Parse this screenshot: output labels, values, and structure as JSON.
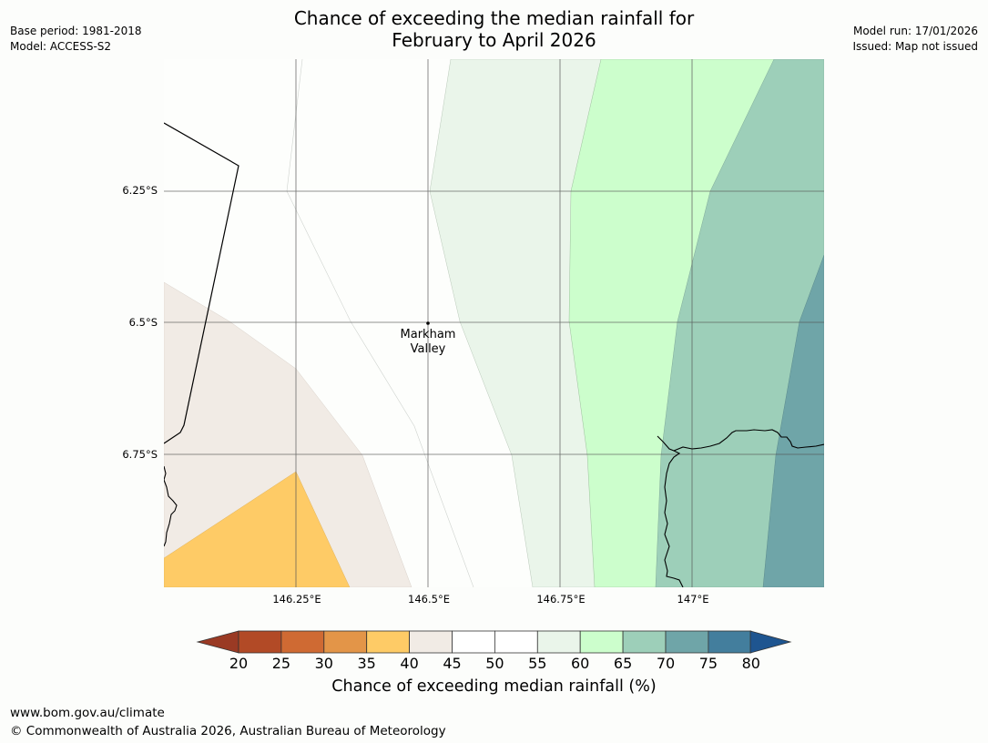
{
  "title": {
    "line1": "Chance of exceeding the median rainfall for",
    "line2": "February to April 2026"
  },
  "meta": {
    "base_period": "Base period: 1981-2018",
    "model": "Model: ACCESS-S2",
    "model_run": "Model run: 17/01/2026",
    "issued": "Issued: Map not issued"
  },
  "map": {
    "lat_labels": [
      "6.25°S",
      "6.5°S",
      "6.75°S"
    ],
    "lon_labels": [
      "146.25°E",
      "146.5°E",
      "146.75°E",
      "147°E"
    ],
    "location": {
      "name_line1": "Markham",
      "name_line2": "Valley"
    }
  },
  "colorbar": {
    "ticks": [
      "20",
      "25",
      "30",
      "35",
      "40",
      "45",
      "50",
      "55",
      "60",
      "65",
      "70",
      "75",
      "80"
    ],
    "colors": [
      "#b24a26",
      "#cf6a33",
      "#e39548",
      "#fecb66",
      "#f1ebe5",
      "#ffffff",
      "#ffffff",
      "#eaf5ea",
      "#ccfecc",
      "#9dcfb9",
      "#6fa5a8",
      "#437e9d"
    ],
    "under_color": "#9a3a24",
    "over_color": "#1e5590",
    "label": "Chance of exceeding median rainfall (%)"
  },
  "footer": {
    "url": "www.bom.gov.au/climate",
    "copyright": "© Commonwealth of Australia 2026, Australian Bureau of Meteorology"
  }
}
